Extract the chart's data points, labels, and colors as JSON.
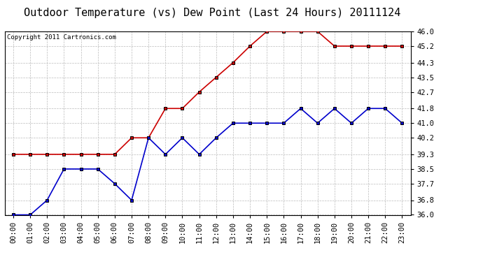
{
  "title": "Outdoor Temperature (vs) Dew Point (Last 24 Hours) 20111124",
  "copyright": "Copyright 2011 Cartronics.com",
  "hours": [
    "00:00",
    "01:00",
    "02:00",
    "03:00",
    "04:00",
    "05:00",
    "06:00",
    "07:00",
    "08:00",
    "09:00",
    "10:00",
    "11:00",
    "12:00",
    "13:00",
    "14:00",
    "15:00",
    "16:00",
    "17:00",
    "18:00",
    "19:00",
    "20:00",
    "21:00",
    "22:00",
    "23:00"
  ],
  "temp_red": [
    39.3,
    39.3,
    39.3,
    39.3,
    39.3,
    39.3,
    39.3,
    40.2,
    40.2,
    41.8,
    41.8,
    42.7,
    43.5,
    44.3,
    45.2,
    46.0,
    46.0,
    46.0,
    46.0,
    45.2,
    45.2,
    45.2,
    45.2,
    45.2
  ],
  "temp_blue": [
    36.0,
    36.0,
    36.8,
    38.5,
    38.5,
    38.5,
    37.7,
    36.8,
    40.2,
    39.3,
    40.2,
    39.3,
    40.2,
    41.0,
    41.0,
    41.0,
    41.0,
    41.8,
    41.0,
    41.8,
    41.0,
    41.8,
    41.8,
    41.0
  ],
  "ylim": [
    36.0,
    46.0
  ],
  "yticks": [
    36.0,
    36.8,
    37.7,
    38.5,
    39.3,
    40.2,
    41.0,
    41.8,
    42.7,
    43.5,
    44.3,
    45.2,
    46.0
  ],
  "red_color": "#cc0000",
  "blue_color": "#0000cc",
  "marker_color": "#000000",
  "bg_color": "#ffffff",
  "grid_color": "#bbbbbb",
  "title_fontsize": 11,
  "copyright_fontsize": 6.5,
  "tick_fontsize": 7.5,
  "ytick_fontsize": 7.5
}
